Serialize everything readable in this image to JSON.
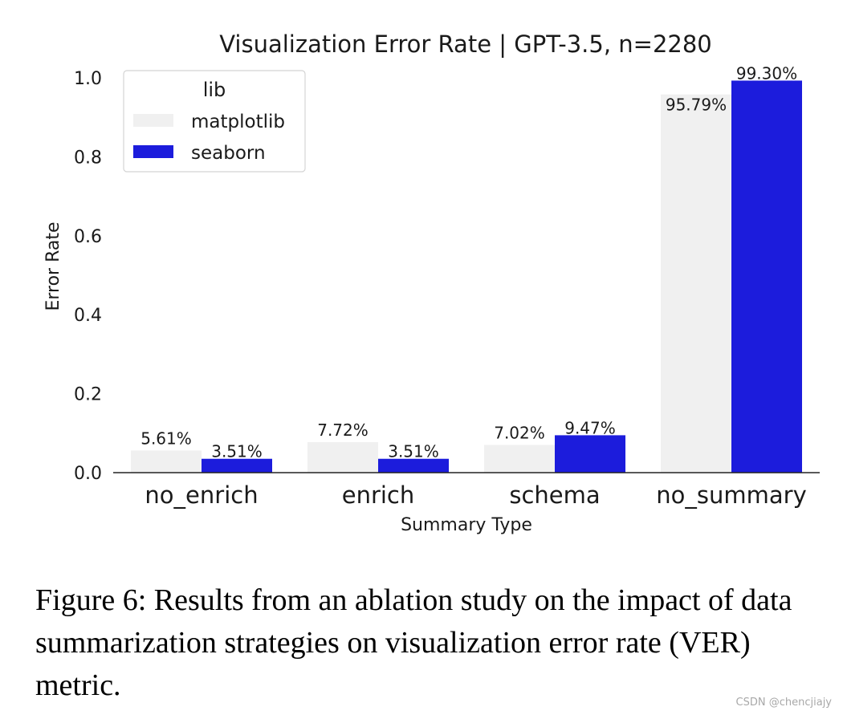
{
  "chart_data": {
    "type": "bar",
    "title": "Visualization Error Rate | GPT-3.5,  n=2280",
    "xlabel": "Summary Type",
    "ylabel": "Error Rate",
    "categories": [
      "no_enrich",
      "enrich",
      "schema",
      "no_summary"
    ],
    "series": [
      {
        "name": "matplotlib",
        "color": "#f0f0f0",
        "values": [
          0.0561,
          0.0772,
          0.0702,
          0.9579
        ],
        "labels": [
          "5.61%",
          "7.72%",
          "7.02%",
          "95.79%"
        ]
      },
      {
        "name": "seaborn",
        "color": "#1c1cdc",
        "values": [
          0.0351,
          0.0351,
          0.0947,
          0.993
        ],
        "labels": [
          "3.51%",
          "3.51%",
          "9.47%",
          "99.30%"
        ]
      }
    ],
    "ylim": [
      0,
      1.0
    ],
    "yticks": [
      "0.0",
      "0.2",
      "0.4",
      "0.6",
      "0.8",
      "1.0"
    ],
    "grid": false,
    "legend": {
      "title": "lib",
      "placement": "top-left"
    }
  },
  "caption": {
    "prefix": "Figure 6: Results from an ablation study on the impact of data summarization strategies on visualization error rate (",
    "abbrev": "VER",
    "suffix": ") metric."
  },
  "watermark": "CSDN @chencjiajy"
}
